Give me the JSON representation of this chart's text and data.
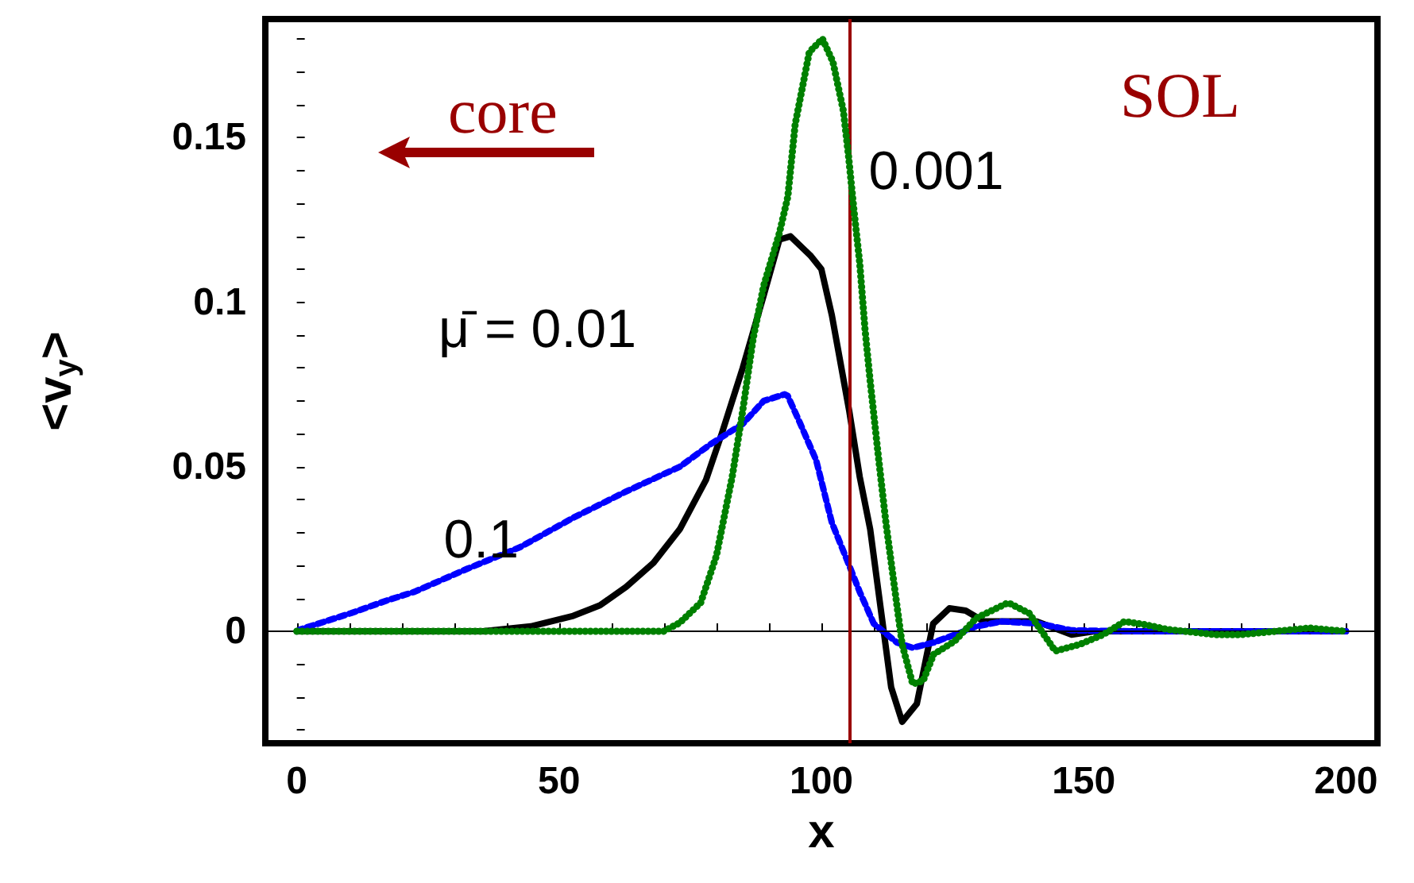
{
  "chart_data": {
    "type": "line",
    "xlabel": "x",
    "ylabel": "<v$_{y}$>",
    "xlim": [
      -6,
      206
    ],
    "ylim": [
      -0.034,
      0.186
    ],
    "xticks": [
      0,
      {
        "value": 10,
        "label": null
      },
      {
        "value": 20,
        "label": null
      },
      {
        "value": 30,
        "label": null
      },
      {
        "value": 40,
        "label": null
      },
      50,
      {
        "value": 60,
        "label": null
      },
      {
        "value": 70,
        "label": null
      },
      {
        "value": 80,
        "label": null
      },
      {
        "value": 90,
        "label": null
      },
      100,
      {
        "value": 110,
        "label": null
      },
      {
        "value": 120,
        "label": null
      },
      {
        "value": 130,
        "label": null
      },
      {
        "value": 140,
        "label": null
      },
      150,
      {
        "value": 160,
        "label": null
      },
      {
        "value": 170,
        "label": null
      },
      {
        "value": 180,
        "label": null
      },
      {
        "value": 190,
        "label": null
      },
      200
    ],
    "yticks": [
      {
        "value": -0.03,
        "label": null
      },
      {
        "value": -0.02,
        "label": null
      },
      {
        "value": -0.01,
        "label": null
      },
      0,
      {
        "value": 0.01,
        "label": null
      },
      {
        "value": 0.02,
        "label": null
      },
      {
        "value": 0.03,
        "label": null
      },
      {
        "value": 0.04,
        "label": null
      },
      0.05,
      {
        "value": 0.06,
        "label": null
      },
      {
        "value": 0.07,
        "label": null
      },
      {
        "value": 0.08,
        "label": null
      },
      {
        "value": 0.09,
        "label": null
      },
      0.1,
      {
        "value": 0.11,
        "label": null
      },
      {
        "value": 0.12,
        "label": null
      },
      {
        "value": 0.13,
        "label": null
      },
      {
        "value": 0.14,
        "label": null
      },
      0.15,
      {
        "value": 0.16,
        "label": null
      },
      {
        "value": 0.17,
        "label": null
      },
      {
        "value": 0.18,
        "label": null
      }
    ],
    "marker": "none",
    "series": [
      {
        "name": "μ̄ = 0.01",
        "color": "#000000",
        "line_style": "solid",
        "x": [
          0,
          35.5,
          44.6,
          52.7,
          57.8,
          62.8,
          68,
          73,
          78,
          81,
          85,
          89,
          92,
          94.1,
          98,
          100,
          102,
          105.3,
          107.3,
          109.3,
          111.3,
          113.3,
          115.4,
          118.2,
          121.3,
          124.4,
          127.5,
          131,
          141,
          147.7,
          152,
          200
        ],
        "values": [
          0,
          0,
          0.0015,
          0.0047,
          0.0079,
          0.0135,
          0.0208,
          0.031,
          0.046,
          0.06,
          0.08,
          0.102,
          0.119,
          0.12,
          0.114,
          0.11,
          0.096,
          0.067,
          0.047,
          0.031,
          0.007,
          -0.017,
          -0.0275,
          -0.022,
          0.0023,
          0.007,
          0.0063,
          0.003,
          0.003,
          -0.001,
          0,
          0
        ]
      },
      {
        "name": "0.1",
        "color": "#0000ff",
        "line_style": "dashed",
        "x": [
          0,
          0.7,
          10.3,
          17.4,
          22.4,
          32.5,
          42.6,
          52.7,
          62.8,
          73,
          79,
          85,
          89,
          93,
          93.6,
          96,
          99,
          102,
          105.3,
          107.3,
          110,
          114.4,
          117.4,
          121.4,
          125.5,
          129.5,
          134.5,
          141.6,
          147.7,
          160,
          200
        ],
        "values": [
          0,
          0.0006,
          0.0055,
          0.0095,
          0.012,
          0.019,
          0.0256,
          0.0345,
          0.0425,
          0.05,
          0.057,
          0.063,
          0.07,
          0.072,
          0.0715,
          0.063,
          0.052,
          0.033,
          0.02,
          0.012,
          0.0023,
          -0.0034,
          -0.005,
          -0.0034,
          -0.001,
          0.0015,
          0.003,
          0.0023,
          0.0003,
          0,
          0
        ]
      },
      {
        "name": "0.001",
        "color": "#008000",
        "line_style": "dotted",
        "x": [
          0,
          69.9,
          73,
          77,
          80,
          83,
          85,
          87,
          89,
          92,
          93.6,
          95,
          97.7,
          100.2,
          102.2,
          104.2,
          105.2,
          106.2,
          107.3,
          108.3,
          109.3,
          110.8,
          112.3,
          113.8,
          115.4,
          117.4,
          119.4,
          121.4,
          125.4,
          129.5,
          135.6,
          139.6,
          144.6,
          149.2,
          153.7,
          157.8,
          161.8,
          165.9,
          175,
          180,
          193,
          200
        ],
        "values": [
          0,
          0,
          0.0026,
          0.0087,
          0.023,
          0.047,
          0.067,
          0.089,
          0.105,
          0.121,
          0.132,
          0.154,
          0.176,
          0.18,
          0.173,
          0.158,
          0.144,
          0.128,
          0.112,
          0.092,
          0.076,
          0.054,
          0.033,
          0.015,
          -0.004,
          -0.016,
          -0.015,
          -0.007,
          -0.003,
          0.004,
          0.0087,
          0.0055,
          -0.006,
          -0.004,
          -0.001,
          0.003,
          0.002,
          0.0006,
          -0.001,
          -0.001,
          0.001,
          0
        ]
      }
    ],
    "ref_lines": [
      {
        "axis": "y",
        "value": 0,
        "color": "#000000"
      },
      {
        "axis": "x",
        "value": 105.5,
        "color": "#990000"
      }
    ],
    "annotations": [
      "core",
      "SOL"
    ]
  }
}
